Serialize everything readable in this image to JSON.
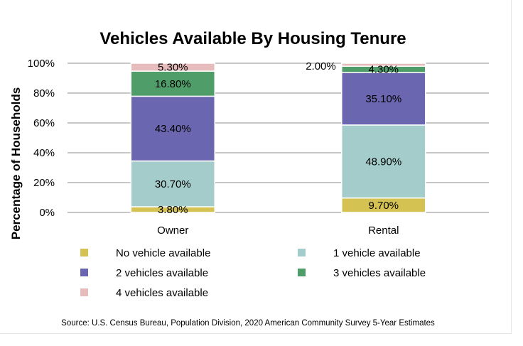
{
  "chart_data": {
    "type": "bar",
    "stacked": true,
    "title": "Vehicles Available By Housing Tenure",
    "ylabel": "Percentage of Households",
    "xlabel": "",
    "ylim": [
      0,
      100
    ],
    "yticks": [
      "0%",
      "20%",
      "40%",
      "60%",
      "80%",
      "100%"
    ],
    "grid": true,
    "legend_position": "bottom",
    "categories": [
      "Owner",
      "Rental"
    ],
    "series": [
      {
        "name": "No vehicle available",
        "color": "#d4c253",
        "values": [
          3.8,
          9.7
        ],
        "labels": [
          "3.80%",
          "9.70%"
        ]
      },
      {
        "name": "1 vehicle available",
        "color": "#a3cccb",
        "values": [
          30.7,
          48.9
        ],
        "labels": [
          "30.70%",
          "48.90%"
        ]
      },
      {
        "name": "2 vehicles available",
        "color": "#6a66b0",
        "values": [
          43.4,
          35.1
        ],
        "labels": [
          "43.40%",
          "35.10%"
        ]
      },
      {
        "name": "3 vehicles available",
        "color": "#4f9e6a",
        "values": [
          16.8,
          4.3
        ],
        "labels": [
          "16.80%",
          "4.30%"
        ]
      },
      {
        "name": "4 vehicles available",
        "color": "#e6bcbc",
        "values": [
          5.3,
          2.0
        ],
        "labels": [
          "5.30%",
          "2.00%"
        ]
      }
    ]
  },
  "source": "Source: U.S. Census Bureau, Population Division, 2020 American Community Survey 5-Year Estimates"
}
